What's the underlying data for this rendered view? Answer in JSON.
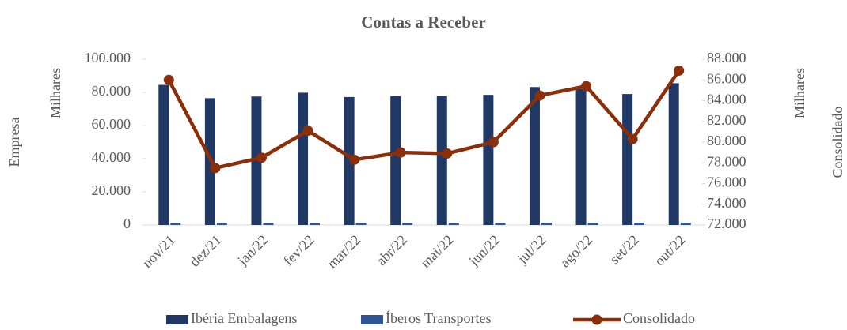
{
  "chart_data": {
    "type": "bar_line",
    "title": "Contas a Receber",
    "y_label": "Empresa",
    "y_unit": "Milhares",
    "y2_label": "Consolidado",
    "y2_unit": "Milhares",
    "categories": [
      "nov/21",
      "dez/21",
      "jan/22",
      "fev/22",
      "mar/22",
      "abr/22",
      "mai/22",
      "jun/22",
      "jul/22",
      "ago/22",
      "set/22",
      "out/22"
    ],
    "series": [
      {
        "name": "Ibéria Embalagens",
        "type": "bar",
        "color": "#1f3864",
        "values": [
          84500,
          76500,
          77500,
          79800,
          77200,
          77800,
          77800,
          78500,
          83200,
          82000,
          79000,
          85500
        ]
      },
      {
        "name": "Íberos Transportes",
        "type": "bar",
        "color": "#2f5597",
        "values": [
          1200,
          1200,
          1200,
          1200,
          1200,
          1200,
          1200,
          1200,
          1300,
          1300,
          1300,
          1400
        ]
      },
      {
        "name": "Consolidado",
        "type": "line",
        "axis": "y2",
        "color": "#8b2e0a",
        "values": [
          86000,
          77500,
          78500,
          81100,
          78300,
          79000,
          78900,
          80000,
          84500,
          85400,
          80300,
          86900
        ]
      }
    ],
    "ylim": [
      0,
      100000
    ],
    "yticks": [
      0,
      {
        "value": 20000,
        "label": "20.000"
      },
      {
        "value": 40000,
        "label": "40.000"
      },
      {
        "value": 60000,
        "label": "60.000"
      },
      {
        "value": 80000,
        "label": "80.000"
      },
      {
        "value": 100000,
        "label": "100.000"
      }
    ],
    "y2lim": [
      72000,
      88000
    ],
    "y2ticks": [
      {
        "value": 72000,
        "label": "72.000"
      },
      {
        "value": 74000,
        "label": "74.000"
      },
      {
        "value": 76000,
        "label": "76.000"
      },
      {
        "value": 78000,
        "label": "78.000"
      },
      {
        "value": 80000,
        "label": "80.000"
      },
      {
        "value": 82000,
        "label": "82.000"
      },
      {
        "value": 84000,
        "label": "84.000"
      },
      {
        "value": 86000,
        "label": "86.000"
      },
      {
        "value": 88000,
        "label": "88.000"
      }
    ],
    "legend": "bottom"
  }
}
